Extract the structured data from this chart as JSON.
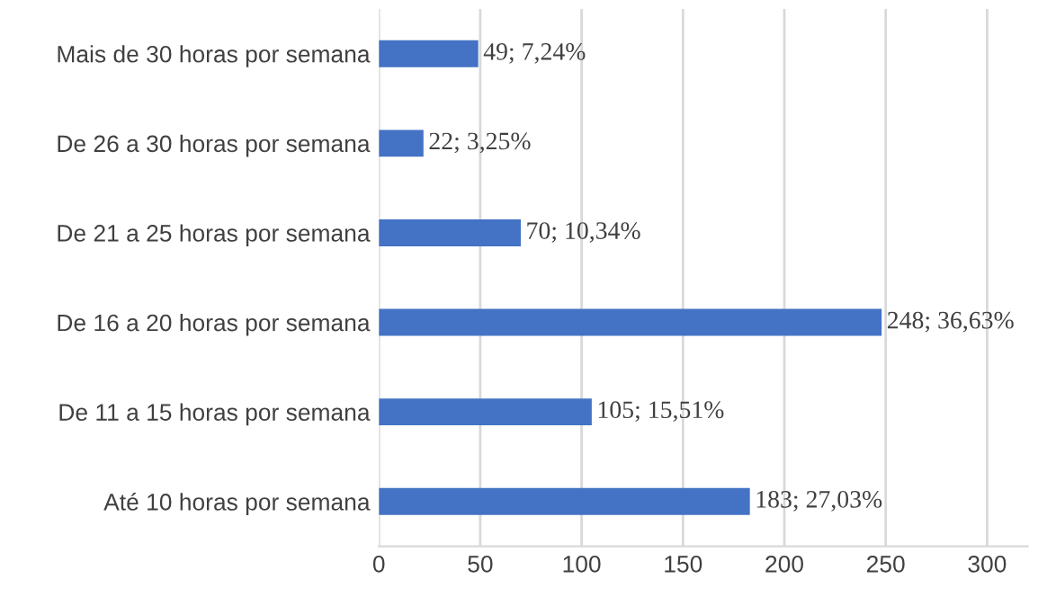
{
  "chart_data": {
    "type": "bar",
    "orientation": "horizontal",
    "categories": [
      "Mais de 30 horas por semana",
      "De 26 a 30 horas por semana",
      "De 21 a 25 horas por semana",
      "De 16 a 20 horas por semana",
      "De 11 a 15 horas por semana",
      "Até 10 horas por semana"
    ],
    "values": [
      49,
      22,
      70,
      248,
      105,
      183
    ],
    "value_labels": [
      "49; 7,24%",
      "22; 3,25%",
      "70; 10,34%",
      "248; 36,63%",
      "105; 15,51%",
      "183; 27,03%"
    ],
    "color": "#4472c4",
    "xlim": [
      0,
      320
    ],
    "xticks": [
      0,
      50,
      100,
      150,
      200,
      250,
      300
    ],
    "grid": "x",
    "legend": false
  }
}
